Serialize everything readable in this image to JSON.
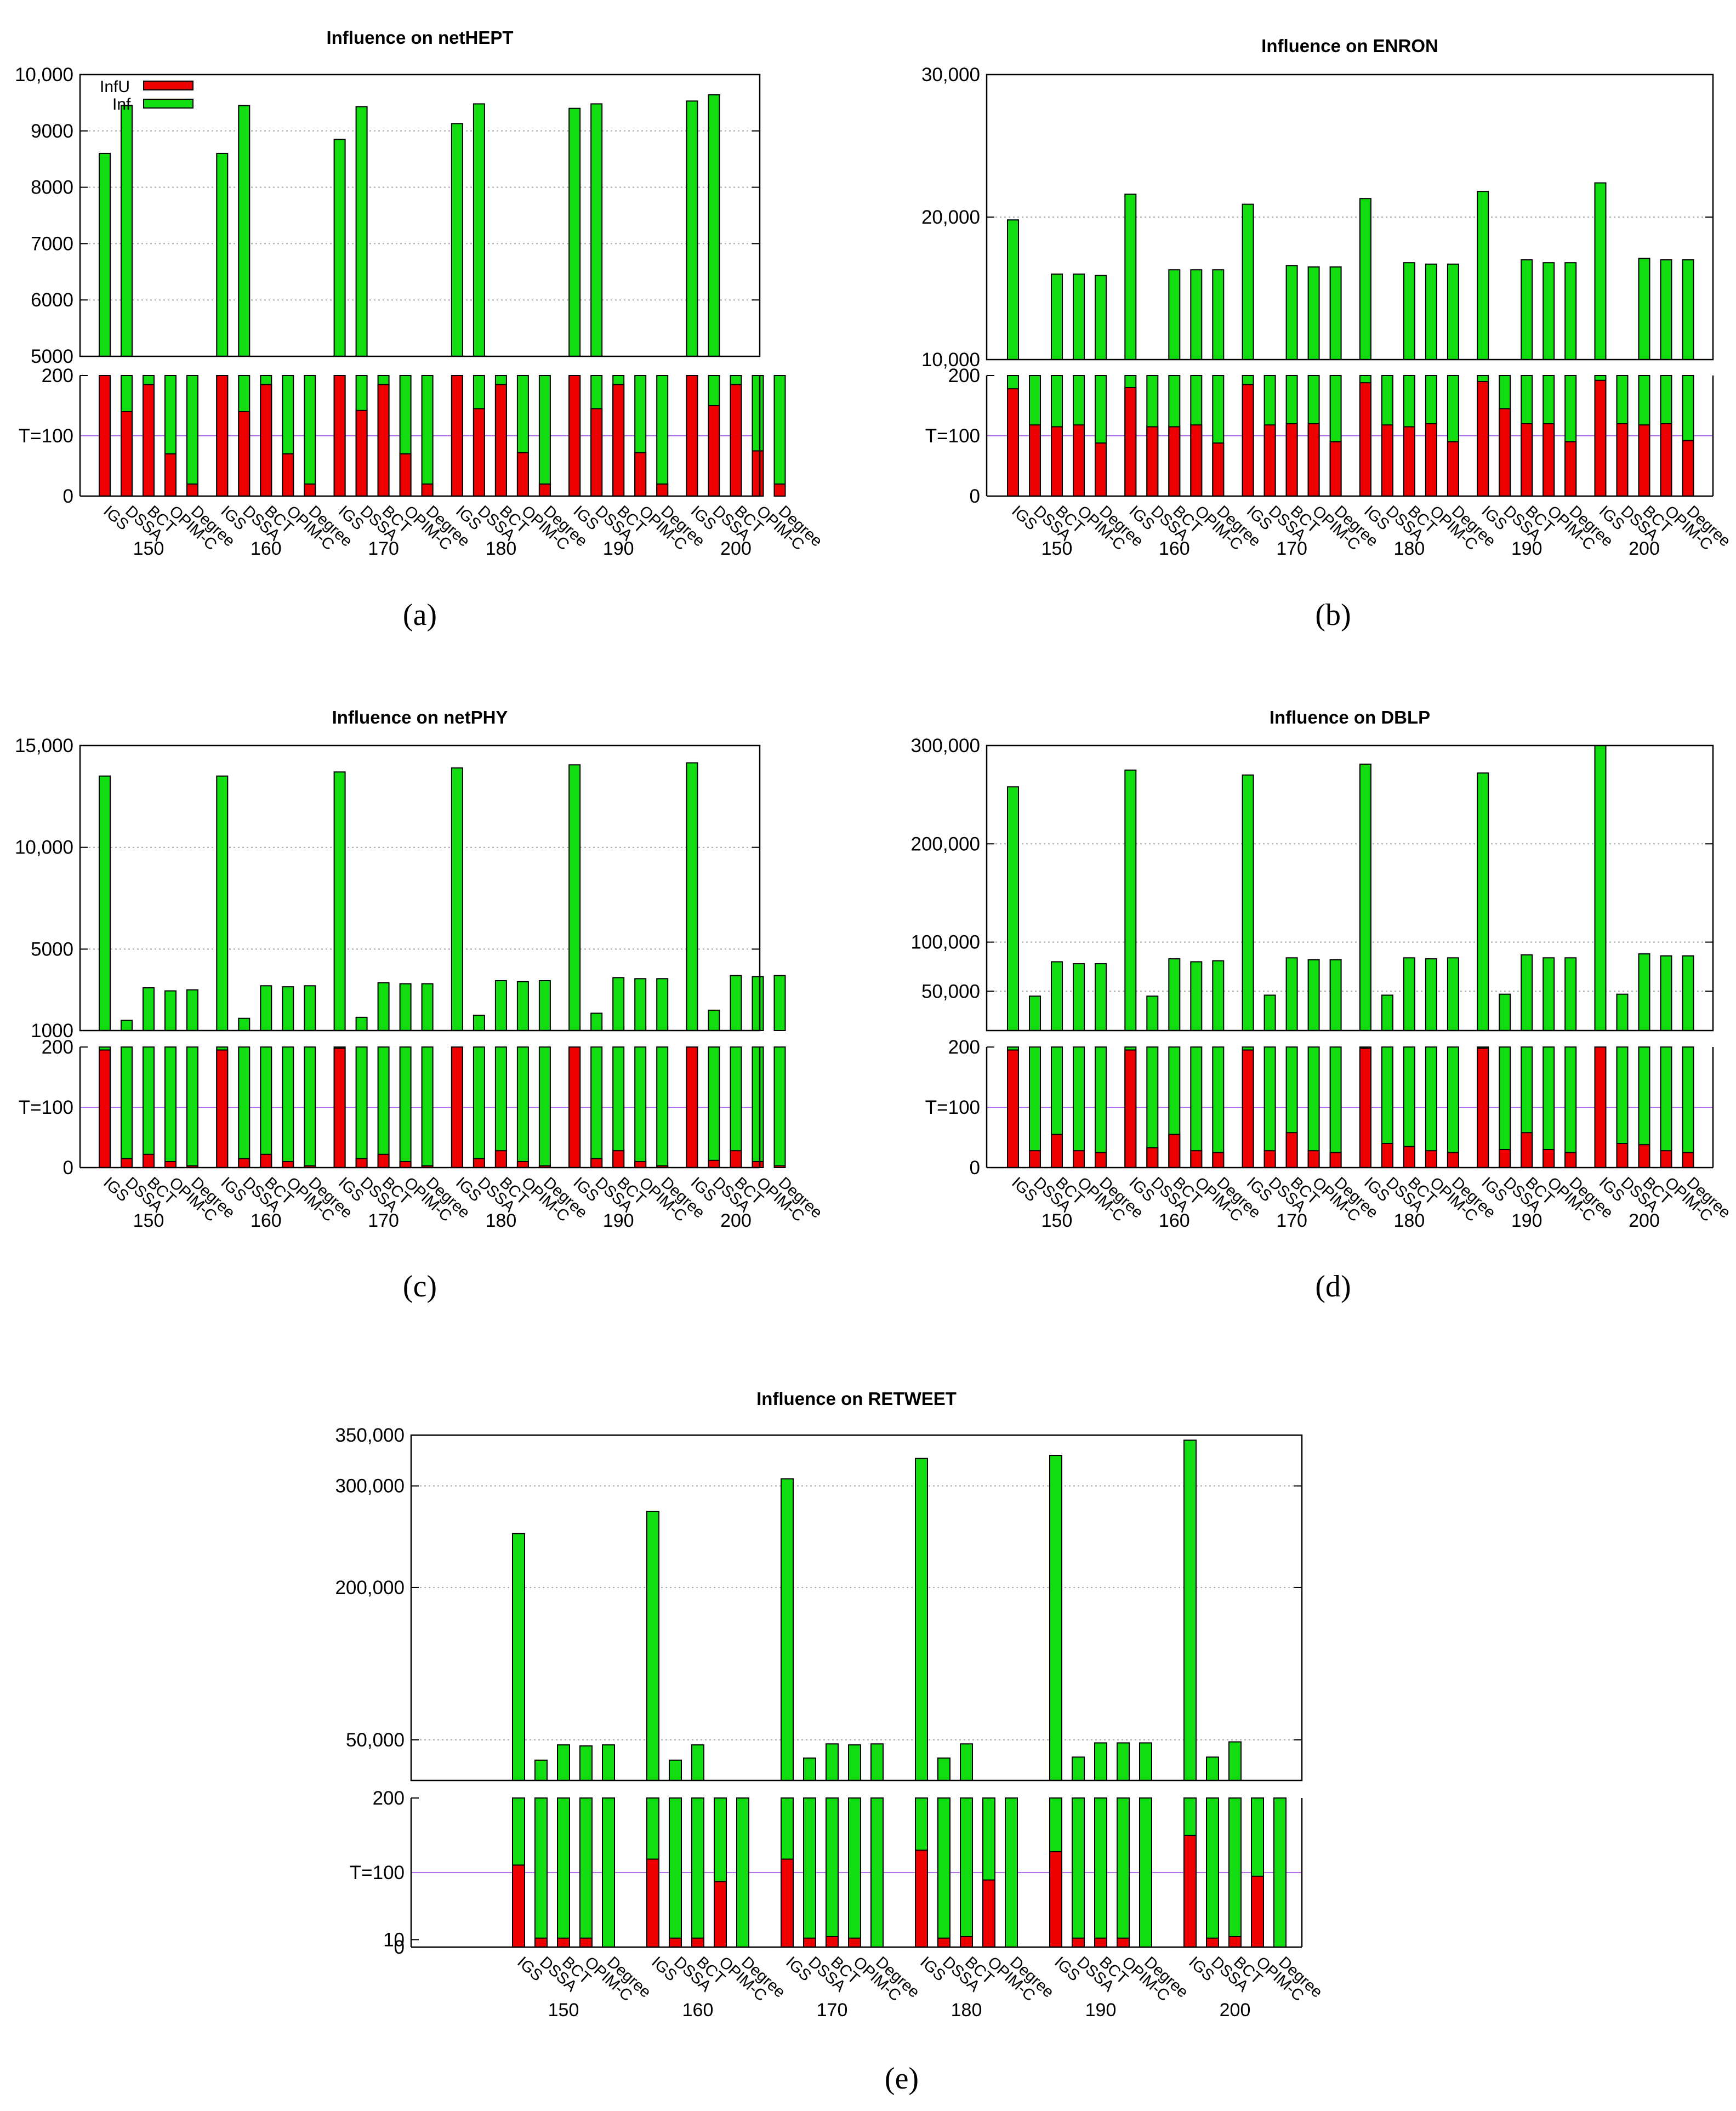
{
  "legend": {
    "infu_label": "InfU",
    "inf_label": "Inf",
    "infu_color": "#ee0000",
    "inf_color": "#11dd11",
    "threshold_color": "#b070f0"
  },
  "threshold_label": "T=100",
  "chart_data": [
    {
      "id": "a",
      "type": "bar",
      "title": "Influence on netHEPT",
      "caption": "(a)",
      "categories": [
        "IGS",
        "DSSA",
        "BCT",
        "OPIM-C",
        "Degree"
      ],
      "groups": [
        "150",
        "160",
        "170",
        "180",
        "190",
        "200"
      ],
      "top_axis": {
        "ylim": [
          5000,
          10000
        ],
        "ticks": [
          5000,
          6000,
          7000,
          8000,
          9000,
          10000
        ],
        "tick_labels": [
          "5000",
          "6000",
          "7000",
          "8000",
          "9000",
          "10,000"
        ]
      },
      "bottom_axis": {
        "ylim": [
          0,
          200
        ],
        "ticks": [
          0,
          100,
          200
        ],
        "tick_labels": [
          "0",
          "T=100",
          "200"
        ]
      },
      "series": [
        {
          "name": "Inf",
          "values": [
            [
              8600,
              9450,
              null,
              null,
              null
            ],
            [
              8600,
              9450,
              null,
              null,
              null
            ],
            [
              8850,
              9430,
              null,
              null,
              null
            ],
            [
              9130,
              9480,
              null,
              null,
              null
            ],
            [
              9400,
              9480,
              null,
              null,
              null
            ],
            [
              9530,
              9640,
              null,
              null,
              null
            ]
          ]
        },
        {
          "name": "InfU",
          "values": [
            [
              200,
              140,
              185,
              70,
              20
            ],
            [
              200,
              140,
              185,
              70,
              20
            ],
            [
              200,
              142,
              185,
              70,
              20
            ],
            [
              200,
              145,
              185,
              72,
              20
            ],
            [
              200,
              145,
              185,
              72,
              20
            ],
            [
              200,
              150,
              185,
              75,
              20
            ]
          ]
        }
      ]
    },
    {
      "id": "b",
      "type": "bar",
      "title": "Influence on ENRON",
      "caption": "(b)",
      "categories": [
        "IGS",
        "DSSA",
        "BCT",
        "OPIM-C",
        "Degree"
      ],
      "groups": [
        "150",
        "160",
        "170",
        "180",
        "190",
        "200"
      ],
      "top_axis": {
        "ylim": [
          10000,
          30000
        ],
        "ticks": [
          10000,
          20000,
          30000
        ],
        "tick_labels": [
          "10,000",
          "20,000",
          "30,000"
        ]
      },
      "bottom_axis": {
        "ylim": [
          0,
          200
        ],
        "ticks": [
          0,
          100,
          200
        ],
        "tick_labels": [
          "0",
          "T=100",
          "200"
        ]
      },
      "series": [
        {
          "name": "Inf",
          "values": [
            [
              19800,
              null,
              16000,
              16000,
              15900
            ],
            [
              21600,
              null,
              16300,
              16300,
              16300
            ],
            [
              20900,
              null,
              16600,
              16500,
              16500
            ],
            [
              21300,
              null,
              16800,
              16700,
              16700
            ],
            [
              21800,
              null,
              17000,
              16800,
              16800
            ],
            [
              22400,
              null,
              17100,
              17000,
              17000
            ]
          ]
        },
        {
          "name": "InfU",
          "values": [
            [
              178,
              118,
              115,
              118,
              88
            ],
            [
              180,
              115,
              115,
              118,
              88
            ],
            [
              185,
              118,
              120,
              120,
              90
            ],
            [
              188,
              118,
              115,
              120,
              90
            ],
            [
              190,
              145,
              120,
              120,
              90
            ],
            [
              192,
              120,
              118,
              120,
              92
            ]
          ]
        }
      ]
    },
    {
      "id": "c",
      "type": "bar",
      "title": "Influence on netPHY",
      "caption": "(c)",
      "categories": [
        "IGS",
        "DSSA",
        "BCT",
        "OPIM-C",
        "Degree"
      ],
      "groups": [
        "150",
        "160",
        "170",
        "180",
        "190",
        "200"
      ],
      "top_axis": {
        "ylim": [
          1000,
          15000
        ],
        "ticks": [
          1000,
          5000,
          10000,
          15000
        ],
        "tick_labels": [
          "1000",
          "5000",
          "10,000",
          "15,000"
        ]
      },
      "bottom_axis": {
        "ylim": [
          0,
          200
        ],
        "ticks": [
          0,
          100,
          200
        ],
        "tick_labels": [
          "0",
          "T=100",
          "200"
        ]
      },
      "series": [
        {
          "name": "Inf",
          "values": [
            [
              13500,
              1500,
              3100,
              2950,
              3000
            ],
            [
              13500,
              1600,
              3200,
              3150,
              3200
            ],
            [
              13700,
              1650,
              3350,
              3300,
              3300
            ],
            [
              13900,
              1750,
              3450,
              3400,
              3450
            ],
            [
              14050,
              1850,
              3600,
              3550,
              3550
            ],
            [
              14150,
              2000,
              3700,
              3650,
              3700
            ]
          ]
        },
        {
          "name": "InfU",
          "values": [
            [
              195,
              15,
              22,
              10,
              3
            ],
            [
              195,
              15,
              22,
              10,
              3
            ],
            [
              198,
              15,
              22,
              10,
              3
            ],
            [
              200,
              15,
              28,
              10,
              3
            ],
            [
              200,
              15,
              28,
              10,
              3
            ],
            [
              200,
              12,
              28,
              10,
              3
            ]
          ]
        }
      ]
    },
    {
      "id": "d",
      "type": "bar",
      "title": "Influence on DBLP",
      "caption": "(d)",
      "categories": [
        "IGS",
        "DSSA",
        "BCT",
        "OPIM-C",
        "Degree"
      ],
      "groups": [
        "150",
        "160",
        "170",
        "180",
        "190",
        "200"
      ],
      "top_axis": {
        "ylim": [
          10000,
          300000
        ],
        "ticks": [
          50000,
          100000,
          200000,
          300000
        ],
        "tick_labels": [
          "50,000",
          "100,000",
          "200,000",
          "300,000"
        ]
      },
      "bottom_axis": {
        "ylim": [
          0,
          200
        ],
        "ticks": [
          0,
          100,
          200
        ],
        "tick_labels": [
          "0",
          "T=100",
          "200"
        ]
      },
      "series": [
        {
          "name": "Inf",
          "values": [
            [
              258000,
              45000,
              80000,
              78000,
              78000
            ],
            [
              275000,
              45000,
              83000,
              80000,
              81000
            ],
            [
              270000,
              46000,
              84000,
              82000,
              82000
            ],
            [
              281000,
              46000,
              84000,
              83000,
              84000
            ],
            [
              272000,
              47000,
              87000,
              84000,
              84000
            ],
            [
              300000,
              47000,
              88000,
              86000,
              86000
            ]
          ]
        },
        {
          "name": "InfU",
          "values": [
            [
              195,
              28,
              55,
              28,
              25
            ],
            [
              195,
              33,
              55,
              28,
              25
            ],
            [
              195,
              28,
              58,
              28,
              25
            ],
            [
              198,
              40,
              35,
              28,
              25
            ],
            [
              198,
              30,
              58,
              30,
              25
            ],
            [
              200,
              40,
              38,
              28,
              25
            ]
          ]
        }
      ]
    },
    {
      "id": "e",
      "type": "bar",
      "title": "Influence on RETWEET",
      "caption": "(e)",
      "categories": [
        "IGS",
        "DSSA",
        "BCT",
        "OPIM-C",
        "Degree"
      ],
      "groups": [
        "150",
        "160",
        "170",
        "180",
        "190",
        "200"
      ],
      "top_axis": {
        "ylim": [
          10000,
          350000
        ],
        "ticks": [
          50000,
          200000,
          300000,
          350000
        ],
        "tick_labels": [
          "50,000",
          "200,000",
          "300,000",
          "350,000"
        ]
      },
      "bottom_axis": {
        "ylim": [
          0,
          200
        ],
        "ticks": [
          0,
          10,
          100,
          200
        ],
        "tick_labels": [
          "0",
          "10",
          "T=100",
          "200"
        ]
      },
      "series": [
        {
          "name": "Inf",
          "values": [
            [
              253000,
              30000,
              45000,
              44000,
              45000
            ],
            [
              275000,
              30000,
              45000,
              null,
              null
            ],
            [
              307000,
              32000,
              46000,
              45000,
              46000
            ],
            [
              327000,
              32000,
              46000,
              null,
              null
            ],
            [
              330000,
              33000,
              47000,
              47000,
              47000
            ],
            [
              345000,
              33000,
              48000,
              null,
              null
            ]
          ]
        },
        {
          "name": "InfU",
          "values": [
            [
              110,
              12,
              12,
              12,
              0
            ],
            [
              118,
              12,
              12,
              88,
              0
            ],
            [
              118,
              12,
              14,
              12,
              0
            ],
            [
              130,
              12,
              14,
              90,
              0
            ],
            [
              128,
              12,
              12,
              12,
              0
            ],
            [
              150,
              12,
              14,
              95,
              0
            ]
          ]
        }
      ]
    }
  ]
}
